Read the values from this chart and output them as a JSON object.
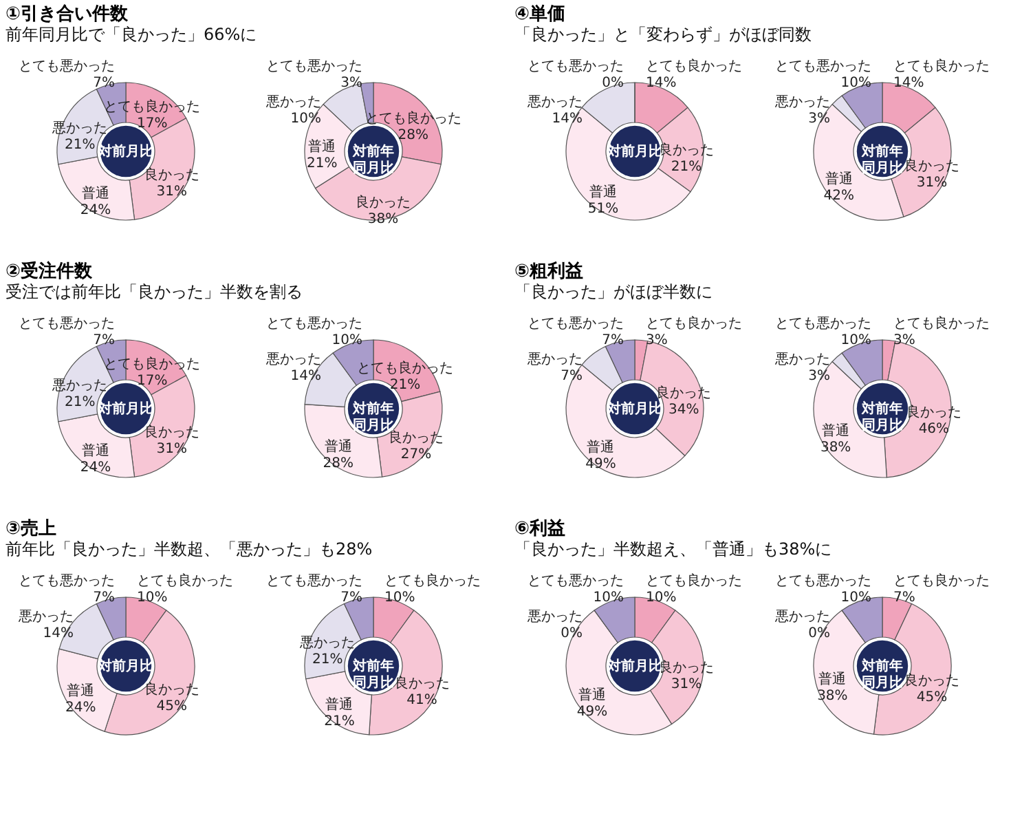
{
  "chart_data": [
    {
      "type": "donut",
      "title": "①引き合い件数",
      "subtitle": "前年同月比で「良かった」66%に",
      "categories": [
        "とても良かった",
        "良かった",
        "普通",
        "悪かった",
        "とても悪かった"
      ],
      "values": [
        17,
        31,
        24,
        21,
        7
      ],
      "value_labels": [
        "17%",
        "31%",
        "24%",
        "21%",
        "7%"
      ],
      "colors": [
        "#f0a3bb",
        "#f7c6d5",
        "#fde8f0",
        "#e3e0ee",
        "#a99ccb"
      ],
      "annotations": [
        "対前月比"
      ]
    },
    {
      "type": "donut",
      "categories": [
        "とても良かった",
        "良かった",
        "普通",
        "悪かった",
        "とても悪かった"
      ],
      "values": [
        28,
        38,
        21,
        10,
        3
      ],
      "value_labels": [
        "28%",
        "38%",
        "21%",
        "10%",
        "3%"
      ],
      "colors": [
        "#f0a3bb",
        "#f7c6d5",
        "#fde8f0",
        "#e3e0ee",
        "#a99ccb"
      ],
      "annotations": [
        "対前年同月比"
      ]
    },
    {
      "type": "donut",
      "title": "②受注件数",
      "subtitle": "受注では前年比「良かった」半数を割る",
      "categories": [
        "とても良かった",
        "良かった",
        "普通",
        "悪かった",
        "とても悪かった"
      ],
      "values": [
        17,
        31,
        24,
        21,
        7
      ],
      "value_labels": [
        "17%",
        "31%",
        "24%",
        "21%",
        "7%"
      ],
      "colors": [
        "#f0a3bb",
        "#f7c6d5",
        "#fde8f0",
        "#e3e0ee",
        "#a99ccb"
      ],
      "annotations": [
        "対前月比"
      ]
    },
    {
      "type": "donut",
      "categories": [
        "とても良かった",
        "良かった",
        "普通",
        "悪かった",
        "とても悪かった"
      ],
      "values": [
        21,
        27,
        28,
        14,
        10
      ],
      "value_labels": [
        "21%",
        "27%",
        "28%",
        "14%",
        "10%"
      ],
      "colors": [
        "#f0a3bb",
        "#f7c6d5",
        "#fde8f0",
        "#e3e0ee",
        "#a99ccb"
      ],
      "annotations": [
        "対前年同月比"
      ]
    },
    {
      "type": "donut",
      "title": "③売上",
      "subtitle": "前年比「良かった」半数超、「悪かった」も28%",
      "categories": [
        "とても良かった",
        "良かった",
        "普通",
        "悪かった",
        "とても悪かった"
      ],
      "values": [
        10,
        45,
        24,
        14,
        7
      ],
      "value_labels": [
        "10%",
        "45%",
        "24%",
        "14%",
        "7%"
      ],
      "colors": [
        "#f0a3bb",
        "#f7c6d5",
        "#fde8f0",
        "#e3e0ee",
        "#a99ccb"
      ],
      "annotations": [
        "対前月比"
      ]
    },
    {
      "type": "donut",
      "categories": [
        "とても良かった",
        "良かった",
        "普通",
        "悪かった",
        "とても悪かった"
      ],
      "values": [
        10,
        41,
        21,
        21,
        7
      ],
      "value_labels": [
        "10%",
        "41%",
        "21%",
        "21%",
        "7%"
      ],
      "colors": [
        "#f0a3bb",
        "#f7c6d5",
        "#fde8f0",
        "#e3e0ee",
        "#a99ccb"
      ],
      "annotations": [
        "対前年同月比"
      ]
    },
    {
      "type": "donut",
      "title": "④単価",
      "subtitle": "「良かった」と「変わらず」がほぼ同数",
      "categories": [
        "とても良かった",
        "良かった",
        "普通",
        "悪かった",
        "とても悪かった"
      ],
      "values": [
        14,
        21,
        51,
        14,
        0
      ],
      "value_labels": [
        "14%",
        "21%",
        "51%",
        "14%",
        "0%"
      ],
      "colors": [
        "#f0a3bb",
        "#f7c6d5",
        "#fde8f0",
        "#e3e0ee",
        "#a99ccb"
      ],
      "annotations": [
        "対前月比"
      ]
    },
    {
      "type": "donut",
      "categories": [
        "とても良かった",
        "良かった",
        "普通",
        "悪かった",
        "とても悪かった"
      ],
      "values": [
        14,
        31,
        42,
        3,
        10
      ],
      "value_labels": [
        "14%",
        "31%",
        "42%",
        "3%",
        "10%"
      ],
      "colors": [
        "#f0a3bb",
        "#f7c6d5",
        "#fde8f0",
        "#e3e0ee",
        "#a99ccb"
      ],
      "annotations": [
        "対前年同月比"
      ]
    },
    {
      "type": "donut",
      "title": "⑤粗利益",
      "subtitle": "「良かった」がほぼ半数に",
      "categories": [
        "とても良かった",
        "良かった",
        "普通",
        "悪かった",
        "とても悪かった"
      ],
      "values": [
        3,
        34,
        49,
        7,
        7
      ],
      "value_labels": [
        "3%",
        "34%",
        "49%",
        "7%",
        "7%"
      ],
      "colors": [
        "#f0a3bb",
        "#f7c6d5",
        "#fde8f0",
        "#e3e0ee",
        "#a99ccb"
      ],
      "annotations": [
        "対前月比"
      ]
    },
    {
      "type": "donut",
      "categories": [
        "とても良かった",
        "良かった",
        "普通",
        "悪かった",
        "とても悪かった"
      ],
      "values": [
        3,
        46,
        38,
        3,
        10
      ],
      "value_labels": [
        "3%",
        "46%",
        "38%",
        "3%",
        "10%"
      ],
      "colors": [
        "#f0a3bb",
        "#f7c6d5",
        "#fde8f0",
        "#e3e0ee",
        "#a99ccb"
      ],
      "annotations": [
        "対前年同月比"
      ]
    },
    {
      "type": "donut",
      "title": "⑥利益",
      "subtitle": "「良かった」半数超え、「普通」も38%に",
      "categories": [
        "とても良かった",
        "良かった",
        "普通",
        "悪かった",
        "とても悪かった"
      ],
      "values": [
        10,
        31,
        49,
        0,
        10
      ],
      "value_labels": [
        "10%",
        "31%",
        "49%",
        "0%",
        "10%"
      ],
      "colors": [
        "#f0a3bb",
        "#f7c6d5",
        "#fde8f0",
        "#e3e0ee",
        "#a99ccb"
      ],
      "annotations": [
        "対前月比"
      ]
    },
    {
      "type": "donut",
      "categories": [
        "とても良かった",
        "良かった",
        "普通",
        "悪かった",
        "とても悪かった"
      ],
      "values": [
        7,
        45,
        38,
        0,
        10
      ],
      "value_labels": [
        "7%",
        "45%",
        "38%",
        "0%",
        "10%"
      ],
      "colors": [
        "#f0a3bb",
        "#f7c6d5",
        "#fde8f0",
        "#e3e0ee",
        "#a99ccb"
      ],
      "annotations": [
        "対前年同月比"
      ]
    }
  ]
}
